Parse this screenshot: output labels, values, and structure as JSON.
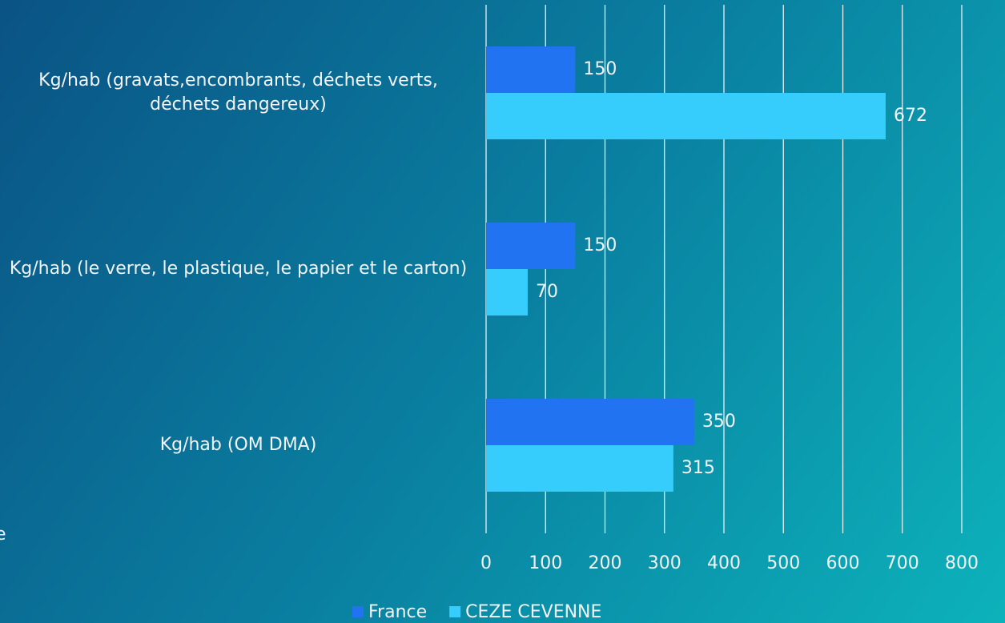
{
  "chart_data": {
    "type": "barh",
    "categories": [
      "Kg/hab (gravats,encombrants, déchets verts, déchets dangereux)",
      "Kg/hab (le verre, le plastique, le papier et le carton)",
      "Kg/hab (OM DMA)"
    ],
    "series": [
      {
        "name": "France",
        "color": "#2173f2",
        "values": [
          150,
          150,
          350
        ]
      },
      {
        "name": "CEZE CEVENNE",
        "color": "#36cdfd",
        "values": [
          672,
          70,
          315
        ]
      }
    ],
    "xlim": [
      0,
      800
    ],
    "xticks": [
      0,
      100,
      200,
      300,
      400,
      500,
      600,
      700,
      800
    ],
    "grid": true,
    "legend": "bottom",
    "fragment": "e"
  }
}
